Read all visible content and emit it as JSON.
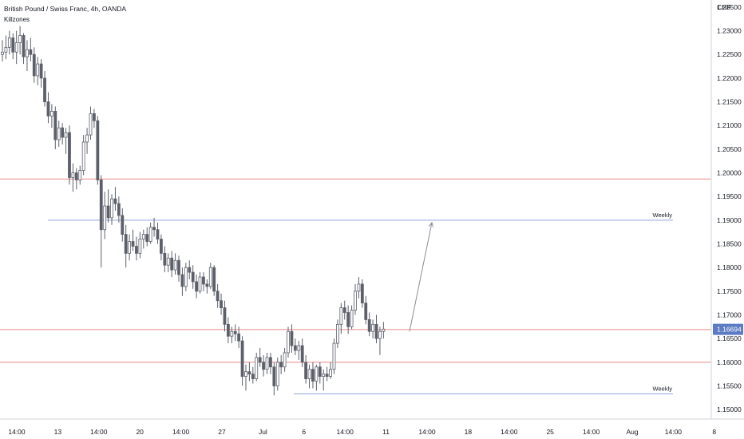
{
  "header": {
    "symbol_title": "British Pound / Swiss Franc, 4h, OANDA",
    "indicator": "Killzones"
  },
  "colors": {
    "candle": "#5d606b",
    "level_red": "#e88a8a",
    "level_blue": "#90a4d4",
    "price_tag": "#5b7cc4",
    "arrow": "#8a8d96"
  },
  "chart_data": {
    "type": "candlestick",
    "symbol": "GBP/CHF",
    "timeframe": "4h",
    "currency_label": "CHF",
    "ylim": [
      1.148,
      1.2365
    ],
    "y_ticks": [
      "1.23500",
      "1.23000",
      "1.22500",
      "1.22000",
      "1.21500",
      "1.21000",
      "1.20500",
      "1.20000",
      "1.19500",
      "1.19000",
      "1.18500",
      "1.18000",
      "1.17500",
      "1.17000",
      "1.16500",
      "1.16000",
      "1.15500",
      "1.15000"
    ],
    "x_ticks": [
      "14:00",
      "13",
      "14:00",
      "20",
      "14:00",
      "27",
      "Jul",
      "6",
      "14:00",
      "11",
      "14:00",
      "18",
      "14:00",
      "25",
      "14:00",
      "Aug",
      "14:00",
      "8"
    ],
    "last_price": "1.16694",
    "horizontal_levels": [
      {
        "price": 1.1987,
        "color": "red",
        "label": ""
      },
      {
        "price": 1.19,
        "color": "blue",
        "label": "Weekly"
      },
      {
        "price": 1.1669,
        "color": "red",
        "label": ""
      },
      {
        "price": 1.16,
        "color": "red",
        "label": ""
      },
      {
        "price": 1.1533,
        "color": "blue",
        "label": "Weekly"
      }
    ],
    "projection_arrow": {
      "from_price": 1.1665,
      "to_price": 1.1895
    },
    "candles": [
      [
        1.225,
        1.228,
        1.2235,
        1.2255
      ],
      [
        1.2255,
        1.229,
        1.224,
        1.2265
      ],
      [
        1.2265,
        1.23,
        1.225,
        1.2285
      ],
      [
        1.2285,
        1.2295,
        1.224,
        1.2255
      ],
      [
        1.2255,
        1.23,
        1.223,
        1.2275
      ],
      [
        1.2275,
        1.231,
        1.225,
        1.229
      ],
      [
        1.229,
        1.2295,
        1.223,
        1.2245
      ],
      [
        1.2245,
        1.228,
        1.2215,
        1.226
      ],
      [
        1.226,
        1.2285,
        1.2235,
        1.225
      ],
      [
        1.225,
        1.2265,
        1.219,
        1.2205
      ],
      [
        1.2205,
        1.2245,
        1.2185,
        1.223
      ],
      [
        1.223,
        1.224,
        1.218,
        1.22
      ],
      [
        1.22,
        1.2215,
        1.214,
        1.215
      ],
      [
        1.215,
        1.217,
        1.2105,
        1.212
      ],
      [
        1.212,
        1.2145,
        1.2095,
        1.213
      ],
      [
        1.213,
        1.214,
        1.205,
        1.207
      ],
      [
        1.207,
        1.211,
        1.2055,
        1.2095
      ],
      [
        1.2095,
        1.2105,
        1.206,
        1.2075
      ],
      [
        1.2075,
        1.2095,
        1.204,
        1.2085
      ],
      [
        1.2085,
        1.21,
        1.1975,
        1.199
      ],
      [
        1.199,
        1.202,
        1.196,
        1.2
      ],
      [
        1.2,
        1.201,
        1.1965,
        1.1985
      ],
      [
        1.1985,
        1.2015,
        1.1975,
        1.2005
      ],
      [
        1.2005,
        1.208,
        1.1995,
        1.2065
      ],
      [
        1.2065,
        1.2095,
        1.204,
        1.208
      ],
      [
        1.208,
        1.214,
        1.207,
        1.2125
      ],
      [
        1.2125,
        1.2135,
        1.2095,
        1.211
      ],
      [
        1.211,
        1.212,
        1.1975,
        1.1985
      ],
      [
        1.1985,
        1.1995,
        1.18,
        1.188
      ],
      [
        1.188,
        1.196,
        1.186,
        1.193
      ],
      [
        1.193,
        1.1965,
        1.1895,
        1.1905
      ],
      [
        1.1905,
        1.1955,
        1.189,
        1.1945
      ],
      [
        1.1945,
        1.197,
        1.192,
        1.1935
      ],
      [
        1.1935,
        1.195,
        1.1895,
        1.191
      ],
      [
        1.191,
        1.1925,
        1.1855,
        1.187
      ],
      [
        1.187,
        1.189,
        1.18,
        1.183
      ],
      [
        1.183,
        1.187,
        1.1815,
        1.1855
      ],
      [
        1.1855,
        1.188,
        1.1835,
        1.1845
      ],
      [
        1.1845,
        1.1865,
        1.1815,
        1.183
      ],
      [
        1.183,
        1.1875,
        1.182,
        1.186
      ],
      [
        1.186,
        1.188,
        1.184,
        1.187
      ],
      [
        1.187,
        1.1885,
        1.1845,
        1.1855
      ],
      [
        1.1855,
        1.1895,
        1.185,
        1.1885
      ],
      [
        1.1885,
        1.1905,
        1.1865,
        1.188
      ],
      [
        1.188,
        1.1895,
        1.185,
        1.186
      ],
      [
        1.186,
        1.187,
        1.1815,
        1.183
      ],
      [
        1.183,
        1.1845,
        1.179,
        1.1805
      ],
      [
        1.1805,
        1.183,
        1.179,
        1.182
      ],
      [
        1.182,
        1.1835,
        1.178,
        1.1795
      ],
      [
        1.1795,
        1.183,
        1.1785,
        1.1815
      ],
      [
        1.1815,
        1.1825,
        1.177,
        1.1785
      ],
      [
        1.1785,
        1.18,
        1.174,
        1.176
      ],
      [
        1.176,
        1.181,
        1.175,
        1.18
      ],
      [
        1.18,
        1.1815,
        1.1775,
        1.179
      ],
      [
        1.179,
        1.1805,
        1.1755,
        1.177
      ],
      [
        1.177,
        1.1785,
        1.1735,
        1.175
      ],
      [
        1.175,
        1.179,
        1.1745,
        1.178
      ],
      [
        1.178,
        1.179,
        1.175,
        1.1765
      ],
      [
        1.1765,
        1.1775,
        1.1745,
        1.176
      ],
      [
        1.176,
        1.181,
        1.1755,
        1.18
      ],
      [
        1.18,
        1.1805,
        1.174,
        1.175
      ],
      [
        1.175,
        1.1765,
        1.1715,
        1.173
      ],
      [
        1.173,
        1.1745,
        1.17,
        1.1715
      ],
      [
        1.1715,
        1.173,
        1.1665,
        1.168
      ],
      [
        1.168,
        1.1695,
        1.164,
        1.1655
      ],
      [
        1.1655,
        1.1675,
        1.164,
        1.1665
      ],
      [
        1.1665,
        1.168,
        1.1645,
        1.166
      ],
      [
        1.166,
        1.1675,
        1.163,
        1.1645
      ],
      [
        1.1645,
        1.1655,
        1.155,
        1.157
      ],
      [
        1.157,
        1.1595,
        1.154,
        1.158
      ],
      [
        1.158,
        1.16,
        1.156,
        1.1575
      ],
      [
        1.1575,
        1.159,
        1.1555,
        1.1565
      ],
      [
        1.1565,
        1.162,
        1.156,
        1.161
      ],
      [
        1.161,
        1.163,
        1.159,
        1.16
      ],
      [
        1.16,
        1.1615,
        1.157,
        1.1585
      ],
      [
        1.1585,
        1.162,
        1.1575,
        1.161
      ],
      [
        1.161,
        1.162,
        1.1575,
        1.159
      ],
      [
        1.159,
        1.16,
        1.153,
        1.155
      ],
      [
        1.155,
        1.161,
        1.154,
        1.16
      ],
      [
        1.16,
        1.1615,
        1.1575,
        1.159
      ],
      [
        1.159,
        1.163,
        1.158,
        1.162
      ],
      [
        1.162,
        1.1675,
        1.161,
        1.1665
      ],
      [
        1.1665,
        1.168,
        1.162,
        1.1635
      ],
      [
        1.1635,
        1.165,
        1.1615,
        1.1625
      ],
      [
        1.1625,
        1.1645,
        1.1605,
        1.1635
      ],
      [
        1.1635,
        1.165,
        1.159,
        1.16
      ],
      [
        1.16,
        1.1615,
        1.1555,
        1.1565
      ],
      [
        1.1565,
        1.1595,
        1.1545,
        1.1585
      ],
      [
        1.1585,
        1.16,
        1.1545,
        1.156
      ],
      [
        1.156,
        1.1595,
        1.154,
        1.159
      ],
      [
        1.159,
        1.16,
        1.1555,
        1.157
      ],
      [
        1.157,
        1.1585,
        1.154,
        1.1575
      ],
      [
        1.1575,
        1.159,
        1.156,
        1.157
      ],
      [
        1.157,
        1.16,
        1.1565,
        1.1585
      ],
      [
        1.1585,
        1.165,
        1.1575,
        1.164
      ],
      [
        1.164,
        1.169,
        1.163,
        1.168
      ],
      [
        1.168,
        1.1725,
        1.166,
        1.1715
      ],
      [
        1.1715,
        1.173,
        1.169,
        1.1705
      ],
      [
        1.1705,
        1.172,
        1.166,
        1.1675
      ],
      [
        1.1675,
        1.172,
        1.167,
        1.171
      ],
      [
        1.171,
        1.1765,
        1.17,
        1.175
      ],
      [
        1.175,
        1.178,
        1.1735,
        1.1765
      ],
      [
        1.1765,
        1.1775,
        1.1715,
        1.1725
      ],
      [
        1.1725,
        1.174,
        1.168,
        1.169
      ],
      [
        1.169,
        1.1705,
        1.1655,
        1.1665
      ],
      [
        1.1665,
        1.169,
        1.165,
        1.168
      ],
      [
        1.168,
        1.17,
        1.164,
        1.165
      ],
      [
        1.165,
        1.1675,
        1.1615,
        1.1665
      ],
      [
        1.1665,
        1.1685,
        1.165,
        1.167
      ]
    ]
  }
}
